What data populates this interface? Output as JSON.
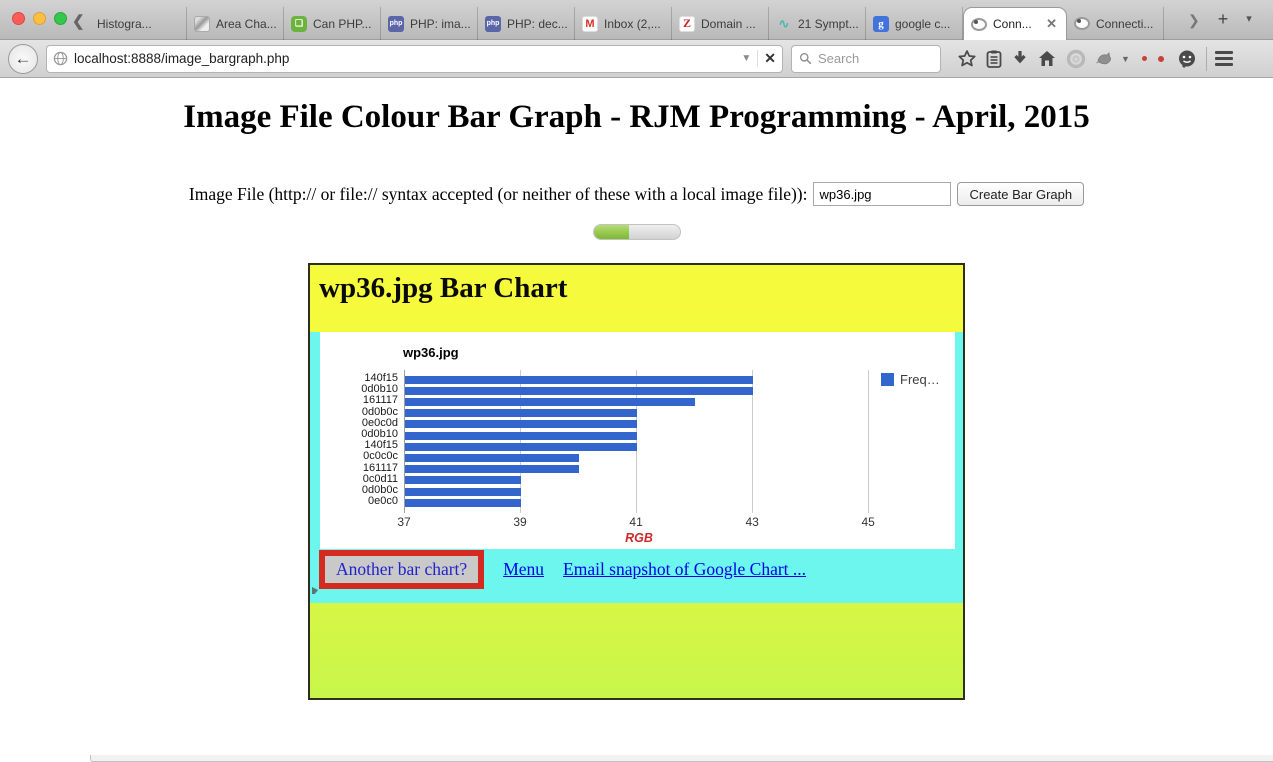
{
  "browser": {
    "tabs": [
      {
        "label": "Histogra...",
        "icon": "page-icon",
        "kind": "page"
      },
      {
        "label": "Area Cha...",
        "icon": "photo-icon",
        "kind": "photo"
      },
      {
        "label": "Can PHP...",
        "icon": "green-bubble-icon",
        "kind": "green-bubble",
        "glyph": "❏"
      },
      {
        "label": "PHP: ima...",
        "icon": "php-icon",
        "kind": "php",
        "glyph": "php"
      },
      {
        "label": "PHP: dec...",
        "icon": "php-icon",
        "kind": "php",
        "glyph": "php"
      },
      {
        "label": "Inbox (2,...",
        "icon": "gmail-icon",
        "kind": "gmail",
        "glyph": "M"
      },
      {
        "label": "Domain ...",
        "icon": "z-icon",
        "kind": "z-red",
        "glyph": "Z"
      },
      {
        "label": "21 Sympt...",
        "icon": "chart-icon",
        "kind": "teal-chart",
        "glyph": "∿"
      },
      {
        "label": "google c...",
        "icon": "google-icon",
        "kind": "google",
        "glyph": "g"
      },
      {
        "label": "Conn...",
        "icon": "loading-icon",
        "kind": "loading",
        "active": true,
        "close_glyph": "✕"
      },
      {
        "label": "Connecti...",
        "icon": "loading-icon",
        "kind": "loading"
      }
    ],
    "tab_overflow_chevron": "❯",
    "new_tab_button": "+",
    "all_tabs_button": "▾",
    "back_chevron": "❮",
    "back_button": "←",
    "url": "localhost:8888/image_bargraph.php",
    "url_dropdown": "▼",
    "url_stop": "✕",
    "search_placeholder": "Search"
  },
  "page": {
    "title": "Image File Colour Bar Graph - RJM Programming - April, 2015",
    "form": {
      "label": "Image File (http:// or file:// syntax accepted (or neither of these with a local image file)):",
      "input_value": "wp36.jpg",
      "button_label": "Create Bar Graph"
    },
    "progress_percent": 41,
    "chart_section": {
      "heading": "wp36.jpg Bar Chart",
      "links": {
        "another": "Another bar chart?",
        "menu": "Menu",
        "email": "Email snapshot of Google Chart ..."
      }
    }
  },
  "chart_data": {
    "type": "bar",
    "orientation": "horizontal",
    "title": "wp36.jpg",
    "categories": [
      "140f15",
      "0d0b10",
      "161117",
      "0d0b0c",
      "0e0c0d",
      "0d0b10",
      "140f15",
      "0c0c0c",
      "161117",
      "0c0d11",
      "0d0b0c",
      "0e0c0"
    ],
    "series": [
      {
        "name": "Freq…",
        "values": [
          43,
          43,
          42,
          41,
          41,
          41,
          41,
          40,
          40,
          39,
          39,
          39
        ]
      }
    ],
    "xlabel": "RGB",
    "xlim": [
      37,
      45.1
    ],
    "xticks": [
      37,
      39,
      41,
      43,
      45
    ],
    "bar_color": "#3366CC",
    "grid": true,
    "legend_position": "right"
  },
  "colors": {
    "bar_blue": "#3366CC",
    "box_yellow_top": "#f6fa3d",
    "box_green_bottom": "#c8f64b",
    "cyan_band": "#6cf6ee",
    "red_border": "#d42a20",
    "link_blue": "#0000e6",
    "progress_green": "#7eb833",
    "xlabel_red": "#cc2a2a"
  }
}
